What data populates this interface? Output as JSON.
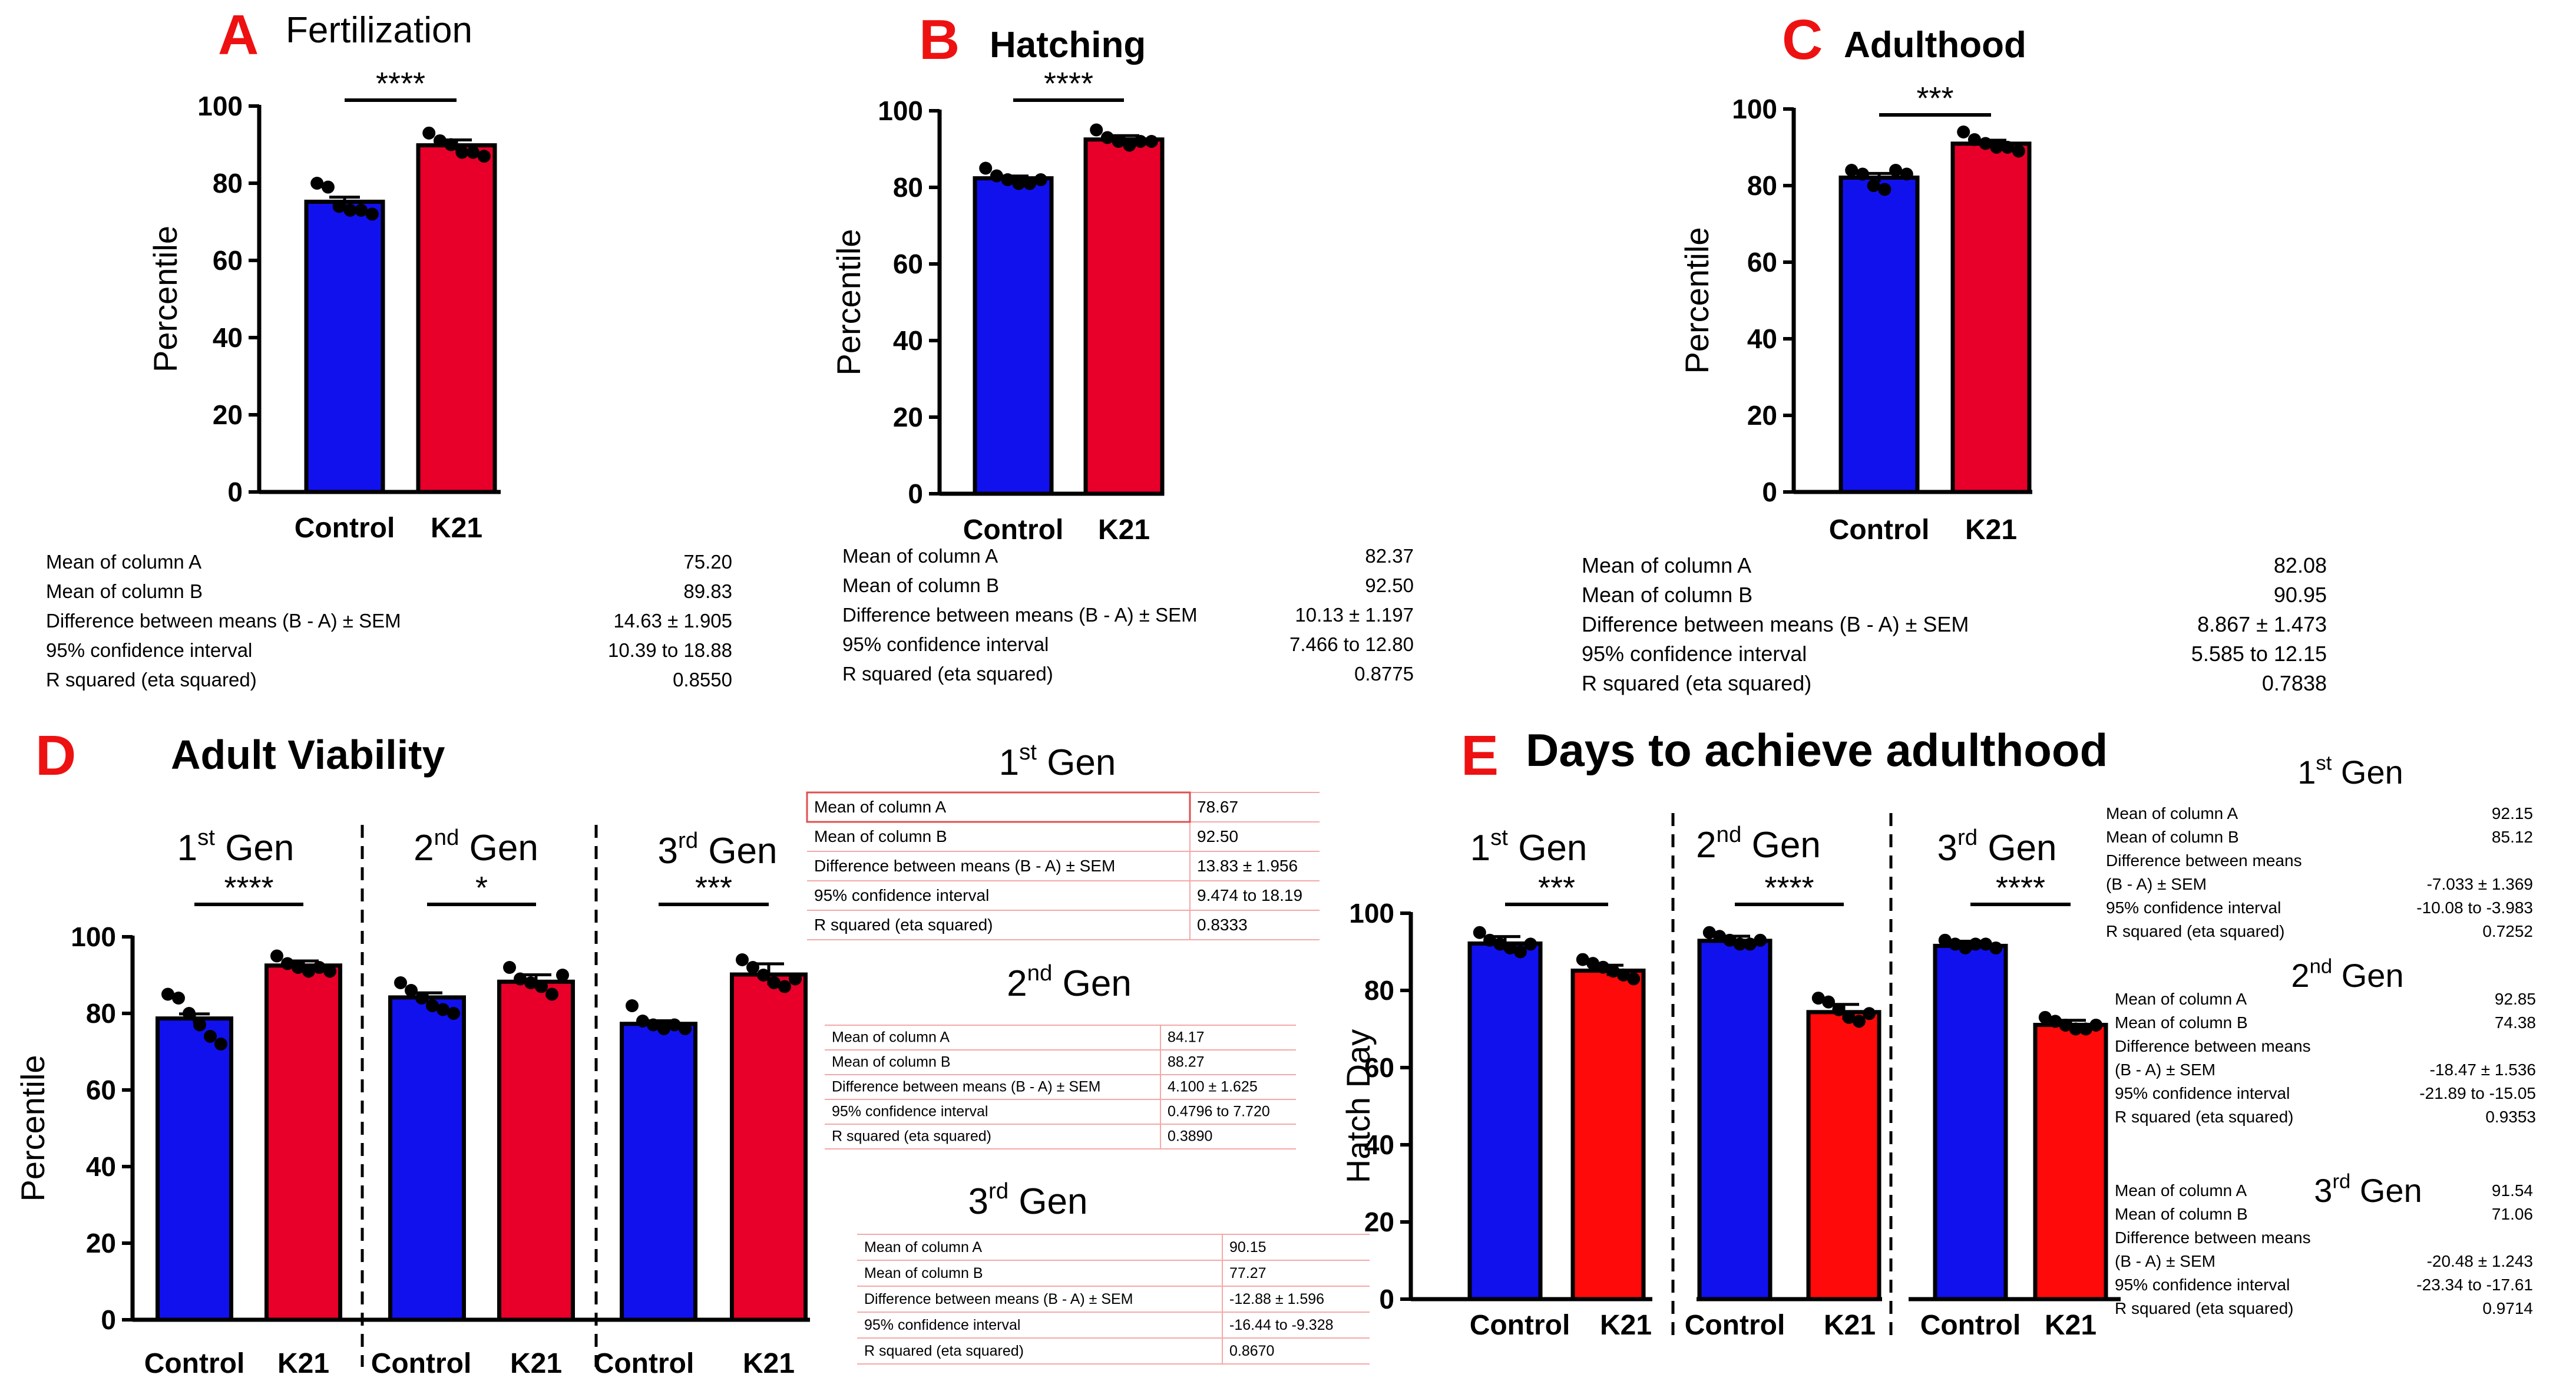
{
  "colors": {
    "control": "#1111ee",
    "k21": "#e8002a",
    "k21_e": "#ff0a0a",
    "panel_letter": "#ee1111",
    "table_border": "#f4a8a8"
  },
  "panels": {
    "A": {
      "letter": "A",
      "title": "Fertilization"
    },
    "B": {
      "letter": "B",
      "title": "Hatching"
    },
    "C": {
      "letter": "C",
      "title": "Adulthood"
    },
    "D": {
      "letter": "D",
      "title": "Adult Viability"
    },
    "E": {
      "letter": "E",
      "title": "Days to achieve adulthood"
    }
  },
  "gen_labels": [
    {
      "num": "1",
      "sup": "st",
      "word": " Gen"
    },
    {
      "num": "2",
      "sup": "nd",
      "word": " Gen"
    },
    {
      "num": "3",
      "sup": "rd",
      "word": " Gen"
    }
  ],
  "chart_data": [
    {
      "id": "A",
      "type": "bar",
      "title": "Fertilization",
      "categories": [
        "Control",
        "K21"
      ],
      "ylabel": "Percentile",
      "ylim": [
        0,
        100
      ],
      "yticks": [
        "0",
        "20",
        "40",
        "60",
        "80",
        "100"
      ],
      "values": [
        75.2,
        89.83
      ],
      "errors": [
        1.2,
        1.4
      ],
      "points": [
        [
          80,
          79,
          74,
          73,
          73,
          72
        ],
        [
          93,
          91,
          90,
          88,
          88,
          87
        ]
      ],
      "significance": "****"
    },
    {
      "id": "B",
      "type": "bar",
      "title": "Hatching",
      "categories": [
        "Control",
        "K21"
      ],
      "ylabel": "Percentile",
      "ylim": [
        0,
        100
      ],
      "yticks": [
        "0",
        "20",
        "40",
        "60",
        "80",
        "100"
      ],
      "values": [
        82.37,
        92.5
      ],
      "errors": [
        0.6,
        1.0
      ],
      "points": [
        [
          85,
          83,
          82,
          81,
          81,
          82
        ],
        [
          95,
          93,
          92,
          91,
          92,
          92
        ]
      ],
      "significance": "****"
    },
    {
      "id": "C",
      "type": "bar",
      "title": "Adulthood",
      "categories": [
        "Control",
        "K21"
      ],
      "ylabel": "Percentile",
      "ylim": [
        0,
        100
      ],
      "yticks": [
        "0",
        "20",
        "40",
        "60",
        "80",
        "100"
      ],
      "values": [
        82.08,
        90.95
      ],
      "errors": [
        1.1,
        0.9
      ],
      "points": [
        [
          84,
          83,
          80,
          79,
          84,
          83
        ],
        [
          94,
          92,
          91,
          90,
          90,
          89
        ]
      ],
      "significance": "***"
    },
    {
      "id": "D",
      "type": "bar",
      "title": "Adult Viability",
      "categories": [
        "Control",
        "K21",
        "Control",
        "K21",
        "Control",
        "K21"
      ],
      "groups": [
        "1st Gen",
        "2nd Gen",
        "3rd Gen"
      ],
      "ylabel": "Percentile",
      "ylim": [
        0,
        100
      ],
      "yticks": [
        "0",
        "20",
        "40",
        "60",
        "80",
        "100"
      ],
      "values": [
        78.67,
        92.5,
        84.17,
        88.27,
        77.27,
        90.15
      ],
      "errors": [
        1.2,
        1.2,
        1.2,
        1.8,
        0.8,
        2.8
      ],
      "points": [
        [
          85,
          84,
          80,
          77,
          74,
          72
        ],
        [
          95,
          93,
          92,
          91,
          92,
          91
        ],
        [
          88,
          86,
          84,
          82,
          81,
          80
        ],
        [
          92,
          89,
          88,
          87,
          85,
          90
        ],
        [
          82,
          78,
          77,
          76,
          77,
          76
        ],
        [
          94,
          92,
          90,
          88,
          87,
          89
        ]
      ],
      "significance": [
        "****",
        "*",
        "***"
      ]
    },
    {
      "id": "E",
      "type": "bar",
      "title": "Days to achieve adulthood",
      "categories": [
        "Control",
        "K21",
        "Control",
        "K21",
        "Control",
        "K21"
      ],
      "groups": [
        "1st Gen",
        "2nd Gen",
        "3rd Gen"
      ],
      "ylabel": "Hatch Day",
      "ylim": [
        0,
        100
      ],
      "yticks": [
        "0",
        "20",
        "40",
        "60",
        "80",
        "100"
      ],
      "values": [
        92.15,
        85.12,
        92.85,
        74.38,
        91.54,
        71.06
      ],
      "errors": [
        1.8,
        1.4,
        1.2,
        2.0,
        1.2,
        1.2
      ],
      "points": [
        [
          95,
          93,
          92,
          91,
          90,
          92
        ],
        [
          88,
          87,
          86,
          85,
          84,
          83
        ],
        [
          95,
          94,
          93,
          92,
          92,
          93
        ],
        [
          78,
          77,
          75,
          73,
          72,
          74
        ],
        [
          93,
          92,
          91,
          92,
          92,
          91
        ],
        [
          73,
          72,
          71,
          70,
          70,
          71
        ]
      ],
      "significance": [
        "***",
        "****",
        "****"
      ]
    }
  ],
  "stats": {
    "A": [
      {
        "label": "Mean of column A",
        "value": "75.20"
      },
      {
        "label": "Mean of column B",
        "value": "89.83"
      },
      {
        "label": "Difference between means (B - A) ± SEM",
        "value": "14.63 ± 1.905"
      },
      {
        "label": "95% confidence interval",
        "value": "10.39 to 18.88"
      },
      {
        "label": "R squared (eta squared)",
        "value": "0.8550"
      }
    ],
    "B": [
      {
        "label": "Mean of column A",
        "value": "82.37"
      },
      {
        "label": "Mean of column B",
        "value": "92.50"
      },
      {
        "label": "Difference between means (B - A) ± SEM",
        "value": "10.13 ± 1.197"
      },
      {
        "label": "95% confidence interval",
        "value": "7.466 to 12.80"
      },
      {
        "label": "R squared (eta squared)",
        "value": "0.8775"
      }
    ],
    "C": [
      {
        "label": "Mean of column A",
        "value": "82.08"
      },
      {
        "label": "Mean of column B",
        "value": "90.95"
      },
      {
        "label": "Difference between means (B - A) ± SEM",
        "value": "8.867 ± 1.473"
      },
      {
        "label": "95% confidence interval",
        "value": "5.585 to 12.15"
      },
      {
        "label": "R squared (eta squared)",
        "value": "0.7838"
      }
    ],
    "D1": [
      {
        "label": "Mean of column A",
        "value": "78.67"
      },
      {
        "label": "Mean of column B",
        "value": "92.50"
      },
      {
        "label": "Difference between means (B - A) ± SEM",
        "value": "13.83 ± 1.956"
      },
      {
        "label": "95% confidence interval",
        "value": "9.474 to 18.19"
      },
      {
        "label": "R squared (eta squared)",
        "value": "0.8333"
      }
    ],
    "D2": [
      {
        "label": "Mean of column A",
        "value": "84.17"
      },
      {
        "label": "Mean of column B",
        "value": "88.27"
      },
      {
        "label": "Difference between means (B - A) ± SEM",
        "value": "4.100 ± 1.625"
      },
      {
        "label": "95% confidence interval",
        "value": "0.4796 to 7.720"
      },
      {
        "label": "R squared (eta squared)",
        "value": "0.3890"
      }
    ],
    "D3": [
      {
        "label": "Mean of column A",
        "value": "90.15"
      },
      {
        "label": "Mean of column B",
        "value": "77.27"
      },
      {
        "label": "Difference between means (B - A) ± SEM",
        "value": "-12.88 ± 1.596"
      },
      {
        "label": "95% confidence interval",
        "value": "-16.44 to -9.328"
      },
      {
        "label": "R squared (eta squared)",
        "value": "0.8670"
      }
    ],
    "E1": [
      {
        "label": "Mean of column A",
        "value": "92.15"
      },
      {
        "label": "Mean of column B",
        "value": "85.12"
      },
      {
        "label": "Difference between means",
        "value": ""
      },
      {
        "label": "(B - A) ± SEM",
        "value": "-7.033 ± 1.369"
      },
      {
        "label": "95% confidence interval",
        "value": "-10.08 to -3.983"
      },
      {
        "label": "R squared (eta squared)",
        "value": "0.7252"
      }
    ],
    "E2": [
      {
        "label": "Mean of column A",
        "value": "92.85"
      },
      {
        "label": "Mean of column B",
        "value": "74.38"
      },
      {
        "label": "Difference between means",
        "value": ""
      },
      {
        "label": "(B - A) ± SEM",
        "value": "-18.47 ± 1.536"
      },
      {
        "label": "95% confidence interval",
        "value": "-21.89 to -15.05"
      },
      {
        "label": "R squared (eta squared)",
        "value": "0.9353"
      }
    ],
    "E3": [
      {
        "label": "Mean of column A",
        "value": "91.54"
      },
      {
        "label": "Mean of column B",
        "value": "71.06"
      },
      {
        "label": "Difference between means",
        "value": ""
      },
      {
        "label": "(B - A) ± SEM",
        "value": "-20.48 ± 1.243"
      },
      {
        "label": "95% confidence interval",
        "value": "-23.34 to -17.61"
      },
      {
        "label": "R squared (eta squared)",
        "value": "0.9714"
      }
    ]
  }
}
